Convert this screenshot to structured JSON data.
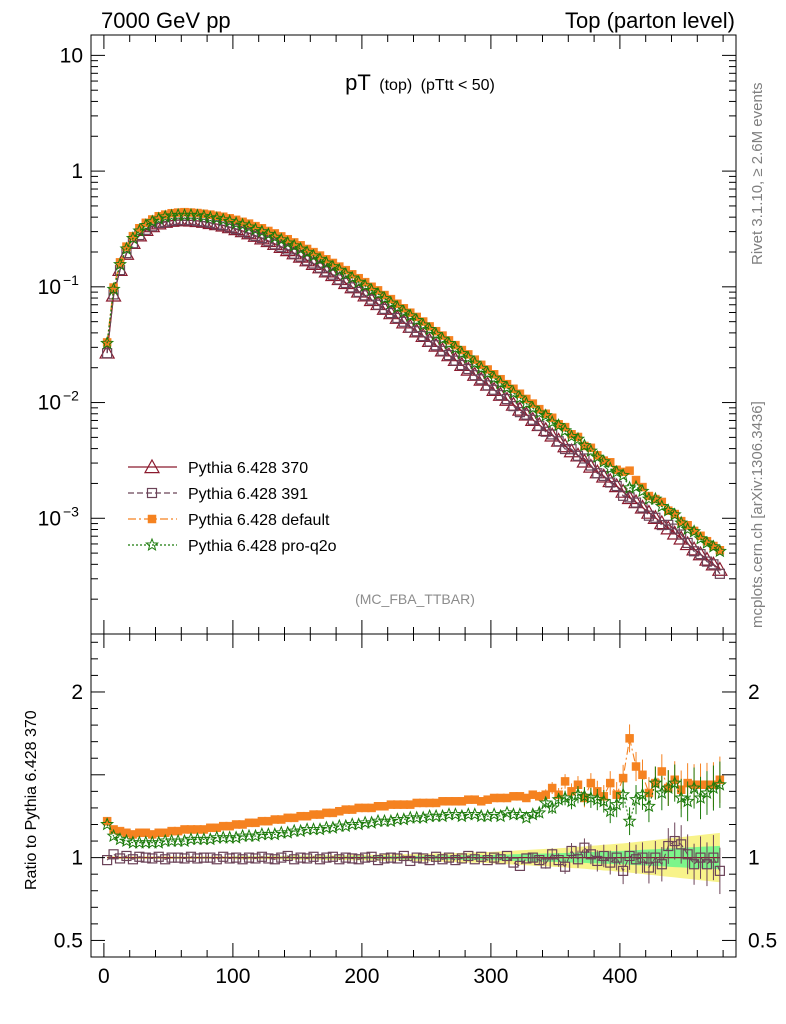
{
  "header": {
    "left": "7000 GeV pp",
    "right": "Top (parton level)"
  },
  "plot_title": {
    "main": "pT",
    "sub1": "(top)",
    "sub2": "(pTtt < 50)"
  },
  "analysis_tag": "(MC_FBA_TTBAR)",
  "side_text": {
    "rivet": "Rivet 3.1.10, ≥ 2.6M events",
    "mcplots": "mcplots.cern.ch [arXiv:1306.3436]"
  },
  "colors": {
    "p370": "#8b1a2e",
    "p391": "#6b4358",
    "default": "#f58220",
    "proq2o": "#1b7a0a",
    "band_inner": "#7df58a",
    "band_outer": "#f8f38a"
  },
  "chart_data": {
    "type": "line",
    "title": "pT (top) (pTtt < 50)",
    "xlabel": "",
    "ylabel_main": "",
    "ylabel_ratio": "Ratio to Pythia 6.428 370",
    "xlim": [
      -10,
      490
    ],
    "ylim_main": [
      0.0001,
      15
    ],
    "ylim_ratio": [
      0.4,
      2.35
    ],
    "y_scale_main": "log",
    "legend_position": "lower-left",
    "x_ticks": [
      0,
      100,
      200,
      300,
      400
    ],
    "x_tick_labels": [
      "0",
      "100",
      "200",
      "300",
      "400"
    ],
    "y_ticks_main": [
      {
        "value": 10,
        "base": "10",
        "exp": ""
      },
      {
        "value": 1,
        "base": "1",
        "exp": ""
      },
      {
        "value": 0.1,
        "base": "10",
        "exp": "−1"
      },
      {
        "value": 0.01,
        "base": "10",
        "exp": "−2"
      },
      {
        "value": 0.001,
        "base": "10",
        "exp": "−3"
      }
    ],
    "y_ticks_ratio": [
      {
        "value": 2,
        "label": "2"
      },
      {
        "value": 1,
        "label": "1"
      },
      {
        "value": 0.5,
        "label": "0.5"
      }
    ],
    "x": [
      2.5,
      7.5,
      12.5,
      17.5,
      22.5,
      27.5,
      32.5,
      37.5,
      42.5,
      47.5,
      52.5,
      57.5,
      62.5,
      67.5,
      72.5,
      77.5,
      82.5,
      87.5,
      92.5,
      97.5,
      102.5,
      107.5,
      112.5,
      117.5,
      122.5,
      127.5,
      132.5,
      137.5,
      142.5,
      147.5,
      152.5,
      157.5,
      162.5,
      167.5,
      172.5,
      177.5,
      182.5,
      187.5,
      192.5,
      197.5,
      202.5,
      207.5,
      212.5,
      217.5,
      222.5,
      227.5,
      232.5,
      237.5,
      242.5,
      247.5,
      252.5,
      257.5,
      262.5,
      267.5,
      272.5,
      277.5,
      282.5,
      287.5,
      292.5,
      297.5,
      302.5,
      307.5,
      312.5,
      317.5,
      322.5,
      327.5,
      332.5,
      337.5,
      342.5,
      347.5,
      352.5,
      357.5,
      362.5,
      367.5,
      372.5,
      377.5,
      382.5,
      387.5,
      392.5,
      397.5,
      402.5,
      407.5,
      412.5,
      417.5,
      422.5,
      427.5,
      432.5,
      437.5,
      442.5,
      447.5,
      452.5,
      457.5,
      462.5,
      467.5,
      472.5,
      477.5
    ],
    "series": [
      {
        "name": "Pythia 6.428 370",
        "values": [
          0.0271,
          0.0843,
          0.1402,
          0.1936,
          0.2404,
          0.2788,
          0.3107,
          0.335,
          0.3542,
          0.3659,
          0.3728,
          0.3778,
          0.3775,
          0.3747,
          0.3711,
          0.3655,
          0.3567,
          0.3487,
          0.339,
          0.3283,
          0.3158,
          0.3037,
          0.2909,
          0.2765,
          0.2627,
          0.2491,
          0.2353,
          0.2217,
          0.2079,
          0.1951,
          0.1827,
          0.1699,
          0.1583,
          0.1479,
          0.1361,
          0.1266,
          0.1169,
          0.108,
          0.0994,
          0.0913,
          0.0844,
          0.077,
          0.0711,
          0.0648,
          0.0593,
          0.0541,
          0.0494,
          0.0453,
          0.0413,
          0.0377,
          0.0342,
          0.0311,
          0.0283,
          0.0257,
          0.0234,
          0.0212,
          0.0193,
          0.0174,
          0.0158,
          0.0143,
          0.0129,
          0.0117,
          0.0106,
          0.0096,
          0.0087,
          0.0079,
          0.0071,
          0.0064,
          0.0058,
          0.0052,
          0.0047,
          0.0042,
          0.0038,
          0.0035,
          0.0031,
          0.0028,
          0.0025,
          0.0023,
          0.0021,
          0.0019,
          0.0017,
          0.0015,
          0.00138,
          0.00124,
          0.00112,
          0.00101,
          0.00091,
          0.00082,
          0.00074,
          0.00067,
          0.0006,
          0.00054,
          0.00049,
          0.00044,
          0.0004,
          0.00036
        ],
        "ratio": [
          1,
          1,
          1,
          1,
          1,
          1,
          1,
          1,
          1,
          1,
          1,
          1,
          1,
          1,
          1,
          1,
          1,
          1,
          1,
          1,
          1,
          1,
          1,
          1,
          1,
          1,
          1,
          1,
          1,
          1,
          1,
          1,
          1,
          1,
          1,
          1,
          1,
          1,
          1,
          1,
          1,
          1,
          1,
          1,
          1,
          1,
          1,
          1,
          1,
          1,
          1,
          1,
          1,
          1,
          1,
          1,
          1,
          1,
          1,
          1,
          1,
          1,
          1,
          1,
          1,
          1,
          1,
          1,
          1,
          1,
          1,
          1,
          1,
          1,
          1,
          1,
          1,
          1,
          1,
          1,
          1,
          1,
          1,
          1,
          1,
          1,
          1,
          1,
          1,
          1,
          1,
          1,
          1,
          1,
          1,
          1
        ]
      },
      {
        "name": "Pythia 6.428 391",
        "ratio": [
          0.985,
          1.02,
          0.995,
          1.01,
          0.99,
          1.005,
          1.0,
          0.995,
          1.005,
          0.99,
          1.0,
          1.0,
          0.995,
          1.005,
          0.995,
          1.0,
          1.0,
          0.99,
          1.005,
          0.995,
          1.0,
          0.99,
          1.0,
          0.995,
          1.005,
          0.995,
          0.99,
          1.0,
          1.01,
          0.99,
          1.0,
          0.995,
          1.005,
          0.99,
          1.0,
          1.005,
          0.99,
          1.0,
          0.995,
          0.99,
          1.0,
          1.005,
          0.985,
          0.995,
          1.0,
          0.995,
          1.01,
          0.98,
          1.0,
          0.995,
          0.985,
          1.005,
          0.99,
          1.0,
          0.985,
          0.995,
          1.01,
          0.99,
          1.005,
          0.985,
          1.0,
          0.99,
          1.01,
          0.97,
          0.95,
          0.995,
          1.0,
          0.985,
          0.965,
          1.02,
          0.985,
          0.945,
          1.04,
          0.99,
          1.06,
          1.02,
          0.98,
          1.01,
          0.97,
          1.0,
          0.92,
          1.01,
          0.99,
          1.0,
          0.94,
          1.0,
          0.96,
          1.07,
          1.1,
          1.08,
          1.02,
          0.96,
          1.0,
          0.96,
          1.0,
          0.92
        ]
      },
      {
        "name": "Pythia 6.428 default",
        "ratio": [
          1.22,
          1.17,
          1.16,
          1.15,
          1.14,
          1.15,
          1.15,
          1.14,
          1.15,
          1.15,
          1.16,
          1.16,
          1.17,
          1.17,
          1.17,
          1.17,
          1.18,
          1.18,
          1.19,
          1.19,
          1.2,
          1.2,
          1.21,
          1.21,
          1.22,
          1.22,
          1.23,
          1.23,
          1.24,
          1.24,
          1.25,
          1.25,
          1.26,
          1.26,
          1.27,
          1.27,
          1.28,
          1.29,
          1.29,
          1.3,
          1.3,
          1.3,
          1.31,
          1.31,
          1.32,
          1.32,
          1.32,
          1.32,
          1.33,
          1.33,
          1.33,
          1.33,
          1.34,
          1.34,
          1.34,
          1.34,
          1.35,
          1.35,
          1.34,
          1.35,
          1.36,
          1.36,
          1.36,
          1.37,
          1.37,
          1.36,
          1.38,
          1.37,
          1.38,
          1.42,
          1.38,
          1.46,
          1.4,
          1.44,
          1.36,
          1.45,
          1.4,
          1.37,
          1.45,
          1.38,
          1.48,
          1.72,
          1.55,
          1.5,
          1.39,
          1.45,
          1.52,
          1.42,
          1.47,
          1.41,
          1.45,
          1.44,
          1.44,
          1.44,
          1.44,
          1.47
        ]
      },
      {
        "name": "Pythia 6.428 pro-q2o",
        "ratio": [
          1.2,
          1.13,
          1.11,
          1.1,
          1.09,
          1.09,
          1.09,
          1.09,
          1.09,
          1.1,
          1.1,
          1.1,
          1.1,
          1.11,
          1.11,
          1.11,
          1.11,
          1.12,
          1.12,
          1.12,
          1.12,
          1.13,
          1.13,
          1.13,
          1.14,
          1.14,
          1.14,
          1.15,
          1.15,
          1.16,
          1.16,
          1.17,
          1.17,
          1.17,
          1.18,
          1.18,
          1.19,
          1.19,
          1.2,
          1.2,
          1.21,
          1.21,
          1.22,
          1.22,
          1.22,
          1.23,
          1.23,
          1.24,
          1.24,
          1.24,
          1.25,
          1.25,
          1.25,
          1.26,
          1.26,
          1.25,
          1.26,
          1.26,
          1.25,
          1.25,
          1.26,
          1.25,
          1.27,
          1.26,
          1.26,
          1.24,
          1.26,
          1.27,
          1.33,
          1.3,
          1.35,
          1.36,
          1.34,
          1.38,
          1.37,
          1.36,
          1.35,
          1.34,
          1.28,
          1.32,
          1.38,
          1.22,
          1.35,
          1.38,
          1.31,
          1.45,
          1.39,
          1.42,
          1.45,
          1.36,
          1.34,
          1.42,
          1.36,
          1.39,
          1.42,
          1.44
        ]
      }
    ],
    "band_inner_halfwidth": [
      0.004,
      0.004,
      0.004,
      0.004,
      0.004,
      0.004,
      0.004,
      0.004,
      0.004,
      0.004,
      0.004,
      0.004,
      0.004,
      0.004,
      0.004,
      0.004,
      0.004,
      0.004,
      0.004,
      0.004,
      0.005,
      0.005,
      0.005,
      0.005,
      0.005,
      0.005,
      0.005,
      0.005,
      0.006,
      0.006,
      0.006,
      0.006,
      0.006,
      0.006,
      0.007,
      0.007,
      0.007,
      0.007,
      0.008,
      0.008,
      0.008,
      0.008,
      0.009,
      0.009,
      0.009,
      0.009,
      0.01,
      0.01,
      0.01,
      0.011,
      0.011,
      0.012,
      0.012,
      0.013,
      0.013,
      0.014,
      0.014,
      0.015,
      0.015,
      0.016,
      0.017,
      0.018,
      0.019,
      0.02,
      0.021,
      0.022,
      0.023,
      0.024,
      0.025,
      0.026,
      0.027,
      0.028,
      0.03,
      0.031,
      0.032,
      0.034,
      0.035,
      0.037,
      0.038,
      0.04,
      0.041,
      0.043,
      0.045,
      0.047,
      0.049,
      0.051,
      0.053,
      0.055,
      0.057,
      0.059,
      0.061,
      0.063,
      0.065,
      0.067,
      0.069,
      0.071
    ],
    "legend": [
      "Pythia 6.428 370",
      "Pythia 6.428 391",
      "Pythia 6.428 default",
      "Pythia 6.428 pro-q2o"
    ]
  }
}
